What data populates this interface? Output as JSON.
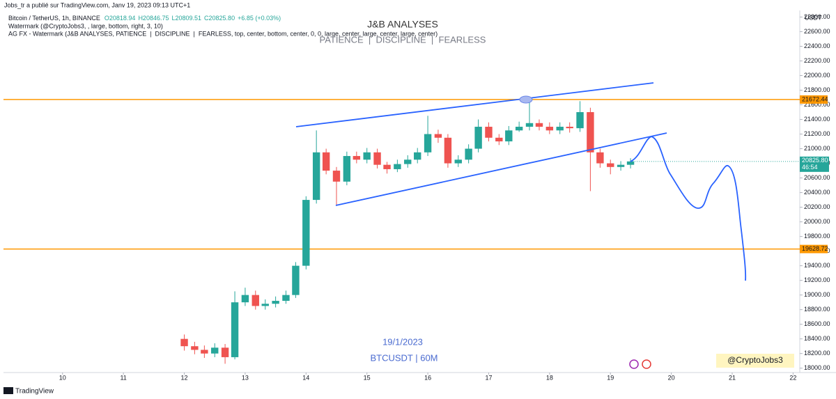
{
  "published": "Jobs_tr a publié sur TradingView.com, Janv 19, 2023 09:13 UTC+1",
  "brand": "TradingView",
  "chart_data": {
    "type": "candlestick",
    "symbol": "Bitcoin / TetherUS, 1h, BINANCE",
    "ohlc_header": [
      "O20818.94",
      "H20846.75",
      "L20809.51",
      "C20825.80",
      "+6.85 (+0.03%)"
    ],
    "indicators": [
      "Watermark (@CryptoJobs3, , large, bottom, right, 3, 10)",
      "AG FX - Watermark (J&B ANALYSES, PATIENCE  |  DISCIPLINE  |  FEARLESS, top, center, bottom, center, 0, 0, large, center, large, center, large, center)"
    ],
    "title": "J&B ANALYSES",
    "subtitle": "PATIENCE  |  DISCIPLINE  |  FEARLESS",
    "date_note": "19/1/2023",
    "timeframe_note": "BTCUSDT | 60M",
    "watermark": "@CryptoJobs3",
    "currency": "USDT",
    "up_color": "#26a69a",
    "down_color": "#ef5350",
    "level_color": "#ff9800",
    "x": [
      12,
      12.17,
      12.33,
      12.5,
      12.67,
      12.83,
      13,
      13.17,
      13.33,
      13.5,
      13.67,
      13.83,
      14,
      14.17,
      14.33,
      14.5,
      14.67,
      14.83,
      15,
      15.17,
      15.33,
      15.5,
      15.67,
      15.83,
      16,
      16.17,
      16.33,
      16.5,
      16.67,
      16.83,
      17,
      17.17,
      17.33,
      17.5,
      17.67,
      17.83,
      18,
      18.17,
      18.33,
      18.5,
      18.67,
      18.83,
      19,
      19.17,
      19.33
    ],
    "open": [
      18400,
      18300,
      18250,
      18200,
      18280,
      18150,
      18900,
      19000,
      18850,
      18880,
      18920,
      19000,
      19400,
      20300,
      20950,
      20700,
      20550,
      20900,
      20850,
      20950,
      20780,
      20720,
      20790,
      20850,
      20950,
      21200,
      21150,
      20800,
      20850,
      21000,
      21300,
      21150,
      21100,
      21250,
      21300,
      21350,
      21300,
      21250,
      21300,
      21280,
      21500,
      20950,
      20800,
      20750,
      20780
    ],
    "high": [
      18460,
      18360,
      18310,
      18340,
      18330,
      19050,
      19100,
      19060,
      18940,
      18980,
      19060,
      19450,
      20350,
      21250,
      21000,
      20750,
      20960,
      20960,
      21010,
      21000,
      20820,
      20850,
      20910,
      21010,
      21450,
      21260,
      21200,
      20910,
      21060,
      21400,
      21360,
      21200,
      21310,
      21370,
      21650,
      21400,
      21360,
      21360,
      21360,
      21650,
      21560,
      21000,
      20850,
      20830,
      20870
    ],
    "low": [
      18240,
      18190,
      18140,
      18150,
      18060,
      18120,
      18850,
      18800,
      18800,
      18830,
      18880,
      18960,
      19350,
      20250,
      20650,
      20230,
      20500,
      20800,
      20800,
      20730,
      20660,
      20680,
      20740,
      20800,
      20900,
      21080,
      20740,
      20750,
      20800,
      20950,
      21100,
      21050,
      21050,
      21230,
      21250,
      21250,
      21200,
      21200,
      21220,
      21230,
      20420,
      20740,
      20650,
      20700,
      20730
    ],
    "close": [
      18300,
      18250,
      18200,
      18280,
      18150,
      18900,
      19000,
      18850,
      18880,
      18920,
      19000,
      19400,
      20300,
      20950,
      20700,
      20550,
      20900,
      20850,
      20950,
      20780,
      20720,
      20790,
      20850,
      20950,
      21200,
      21150,
      20800,
      20850,
      21000,
      21300,
      21150,
      21100,
      21250,
      21300,
      21350,
      21300,
      21250,
      21300,
      21280,
      21500,
      20950,
      20800,
      20750,
      20780,
      20826
    ],
    "levels": [
      21672.44,
      19628.72
    ],
    "last_price": {
      "value": 20825.8,
      "label": "20825.80"
    },
    "countdown": "46:54",
    "xlim": [
      9.03,
      22.11
    ],
    "xticks": [
      10,
      11,
      12,
      13,
      14,
      15,
      16,
      17,
      18,
      19,
      20,
      21,
      22
    ],
    "ylim": [
      17940,
      22890
    ],
    "yticks": [
      {
        "value": 18000,
        "label": "18000.00"
      },
      {
        "value": 18200,
        "label": "18200.00"
      },
      {
        "value": 18400,
        "label": "18400.00"
      },
      {
        "value": 18600,
        "label": "18600.00"
      },
      {
        "value": 18800,
        "label": "18800.00"
      },
      {
        "value": 19000,
        "label": "19000.00"
      },
      {
        "value": 19200,
        "label": "19200.00"
      },
      {
        "value": 19400,
        "label": "19400.00"
      },
      {
        "value": 19600,
        "label": "19600.00"
      },
      {
        "value": 19800,
        "label": "19800.00"
      },
      {
        "value": 20000,
        "label": "20000.00"
      },
      {
        "value": 20200,
        "label": "20200.00"
      },
      {
        "value": 20400,
        "label": "20400.00"
      },
      {
        "value": 20600,
        "label": "20600.00"
      },
      {
        "value": 20800,
        "label": "20800.00"
      },
      {
        "value": 21000,
        "label": "21000.00"
      },
      {
        "value": 21200,
        "label": "21200.00"
      },
      {
        "value": 21400,
        "label": "21400.00"
      },
      {
        "value": 21600,
        "label": "21600.00"
      },
      {
        "value": 21800,
        "label": "21800.00"
      },
      {
        "value": 22000,
        "label": "22000.00"
      },
      {
        "value": 22200,
        "label": "22200.00"
      },
      {
        "value": 22400,
        "label": "22400.00"
      },
      {
        "value": 22600,
        "label": "22600.00"
      },
      {
        "value": 22800,
        "label": "22800.00"
      }
    ],
    "grid": false
  }
}
